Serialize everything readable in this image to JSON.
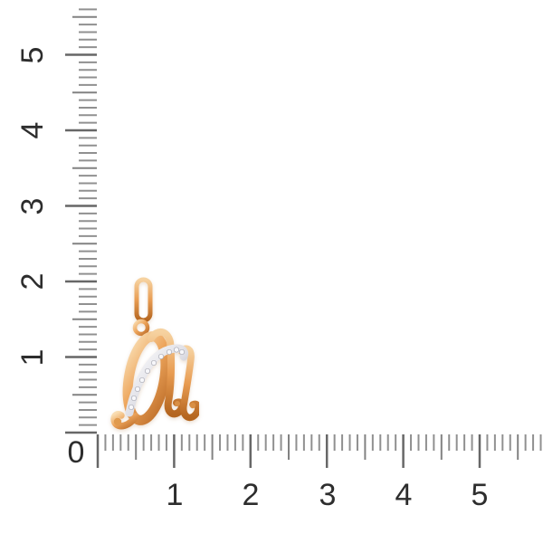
{
  "scene": {
    "background": "#ffffff",
    "description": "Rose-gold cursive letter pendant with diamond pave swash photographed against centimeter rulers"
  },
  "rulers": {
    "unit": "cm",
    "origin_label": "0",
    "left_labels": [
      "1",
      "2",
      "3",
      "4",
      "5"
    ],
    "bottom_labels": [
      "1",
      "2",
      "3",
      "4",
      "5"
    ],
    "minor_tick_color": "#909090",
    "half_tick_color": "#828282",
    "major_tick_color": "#676767",
    "label_color": "#2d2d2d"
  },
  "pendant": {
    "name": "rose-gold cursive letter M pendant with diamond pave swash",
    "gold_highlight": "#f9ddb2",
    "gold_color": "#eda55c",
    "gold_shadow": "#bf6f2a",
    "pave_silver": "#dddde4",
    "diamond_count": 10,
    "approx_width_cm": "1.0",
    "approx_height_cm": "2.1"
  }
}
